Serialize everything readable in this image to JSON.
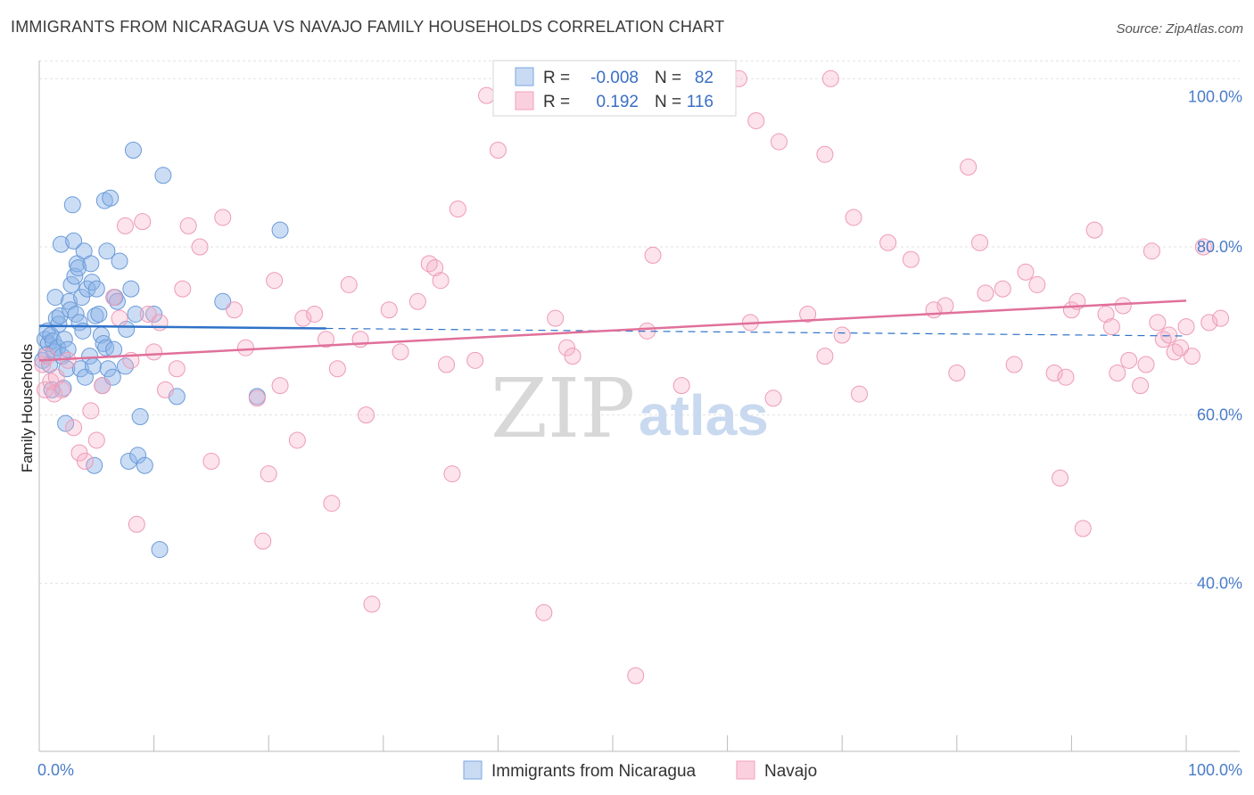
{
  "header": {
    "title": "IMMIGRANTS FROM NICARAGUA VS NAVAJO FAMILY HOUSEHOLDS CORRELATION CHART",
    "source": "Source: ZipAtlas.com"
  },
  "watermark": {
    "part1": "ZIP",
    "part2": "atlas"
  },
  "legend": {
    "rows": [
      {
        "r_label": "R =",
        "r_value": "-0.008",
        "n_label": "N =",
        "n_value": "82"
      },
      {
        "r_label": "R =",
        "r_value": "0.192",
        "n_label": "N =",
        "n_value": "116"
      }
    ]
  },
  "chart_data": {
    "type": "scatter",
    "title": "IMMIGRANTS FROM NICARAGUA VS NAVAJO FAMILY HOUSEHOLDS CORRELATION CHART",
    "xlabel": "",
    "ylabel": "Family Households",
    "xlim": [
      0,
      100
    ],
    "ylim": [
      20,
      103
    ],
    "x_tick_labels": [
      "0.0%",
      "100.0%"
    ],
    "y_ticks": [
      40,
      60,
      80,
      100
    ],
    "y_tick_labels": [
      "40.0%",
      "60.0%",
      "80.0%",
      "100.0%"
    ],
    "colors": {
      "nicaragua": "#7aa7e0",
      "navajo": "#f0a0bb",
      "nicaragua_line": "#2f72c8",
      "navajo_line": "#e0709a"
    },
    "series": [
      {
        "name": "Immigrants from Nicaragua",
        "R": -0.008,
        "N": 82,
        "trend": {
          "x": [
            0,
            25
          ],
          "y": [
            70.6,
            70.3
          ],
          "dashed_to": [
            100,
            69.4
          ]
        },
        "points": [
          [
            0.3,
            66.5
          ],
          [
            0.5,
            69.0
          ],
          [
            0.6,
            67.2
          ],
          [
            0.7,
            70.0
          ],
          [
            0.8,
            68.5
          ],
          [
            0.9,
            66.0
          ],
          [
            1.0,
            69.5
          ],
          [
            1.1,
            63.0
          ],
          [
            1.2,
            68.8
          ],
          [
            1.3,
            67.5
          ],
          [
            1.4,
            74.0
          ],
          [
            1.5,
            71.5
          ],
          [
            1.6,
            68.0
          ],
          [
            1.7,
            70.8
          ],
          [
            1.8,
            71.8
          ],
          [
            1.9,
            80.3
          ],
          [
            2.0,
            67.0
          ],
          [
            2.1,
            63.2
          ],
          [
            2.2,
            69.0
          ],
          [
            2.3,
            59.0
          ],
          [
            2.4,
            65.5
          ],
          [
            2.5,
            67.8
          ],
          [
            2.6,
            73.5
          ],
          [
            2.7,
            72.5
          ],
          [
            2.8,
            75.5
          ],
          [
            2.9,
            85.0
          ],
          [
            3.0,
            80.7
          ],
          [
            3.1,
            76.5
          ],
          [
            3.2,
            72.0
          ],
          [
            3.3,
            78.0
          ],
          [
            3.4,
            77.5
          ],
          [
            3.5,
            71.0
          ],
          [
            3.6,
            65.5
          ],
          [
            3.7,
            74.0
          ],
          [
            3.8,
            70.0
          ],
          [
            3.9,
            79.5
          ],
          [
            4.0,
            64.5
          ],
          [
            4.2,
            75.0
          ],
          [
            4.4,
            67.0
          ],
          [
            4.5,
            78.0
          ],
          [
            4.6,
            75.8
          ],
          [
            4.7,
            65.8
          ],
          [
            4.8,
            54.0
          ],
          [
            4.9,
            71.8
          ],
          [
            5.0,
            75.0
          ],
          [
            5.2,
            72.0
          ],
          [
            5.4,
            69.5
          ],
          [
            5.5,
            63.5
          ],
          [
            5.6,
            68.5
          ],
          [
            5.7,
            85.5
          ],
          [
            5.8,
            68.0
          ],
          [
            5.9,
            79.5
          ],
          [
            6.0,
            65.5
          ],
          [
            6.2,
            85.8
          ],
          [
            6.4,
            64.5
          ],
          [
            6.5,
            67.8
          ],
          [
            6.6,
            74.0
          ],
          [
            6.8,
            73.5
          ],
          [
            7.0,
            78.3
          ],
          [
            7.5,
            65.8
          ],
          [
            7.6,
            70.2
          ],
          [
            7.8,
            54.5
          ],
          [
            8.0,
            75.0
          ],
          [
            8.2,
            91.5
          ],
          [
            8.4,
            72.0
          ],
          [
            8.6,
            55.2
          ],
          [
            8.8,
            59.8
          ],
          [
            9.2,
            54.0
          ],
          [
            10.0,
            72.0
          ],
          [
            10.5,
            44.0
          ],
          [
            10.8,
            88.5
          ],
          [
            12.0,
            62.2
          ],
          [
            16.0,
            73.5
          ],
          [
            19.0,
            62.2
          ],
          [
            21.0,
            82.0
          ]
        ]
      },
      {
        "name": "Navajo",
        "R": 0.192,
        "N": 116,
        "trend": {
          "x": [
            0,
            100
          ],
          "y": [
            66.5,
            73.6
          ]
        },
        "points": [
          [
            0.3,
            66.0
          ],
          [
            0.5,
            63.0
          ],
          [
            0.7,
            67.0
          ],
          [
            1.0,
            64.0
          ],
          [
            1.3,
            62.5
          ],
          [
            1.5,
            64.5
          ],
          [
            2.0,
            63.0
          ],
          [
            2.5,
            66.5
          ],
          [
            3.0,
            58.5
          ],
          [
            3.5,
            55.5
          ],
          [
            4.0,
            54.5
          ],
          [
            4.5,
            60.5
          ],
          [
            5.0,
            57.0
          ],
          [
            5.5,
            63.5
          ],
          [
            6.5,
            74.0
          ],
          [
            7.0,
            71.5
          ],
          [
            7.5,
            82.5
          ],
          [
            8.0,
            66.5
          ],
          [
            8.5,
            47.0
          ],
          [
            9.0,
            83.0
          ],
          [
            9.5,
            72.0
          ],
          [
            10.0,
            67.5
          ],
          [
            10.5,
            71.0
          ],
          [
            11.0,
            63.0
          ],
          [
            12.0,
            65.5
          ],
          [
            12.5,
            75.0
          ],
          [
            13.0,
            82.5
          ],
          [
            14.0,
            80.0
          ],
          [
            15.0,
            54.5
          ],
          [
            16.0,
            83.5
          ],
          [
            17.0,
            72.5
          ],
          [
            18.0,
            68.0
          ],
          [
            19.0,
            62.0
          ],
          [
            19.5,
            45.0
          ],
          [
            20.0,
            53.0
          ],
          [
            20.5,
            76.0
          ],
          [
            21.0,
            63.5
          ],
          [
            22.5,
            57.0
          ],
          [
            23.0,
            71.5
          ],
          [
            24.0,
            72.0
          ],
          [
            25.0,
            69.0
          ],
          [
            25.5,
            49.5
          ],
          [
            26.0,
            65.5
          ],
          [
            27.0,
            75.5
          ],
          [
            28.0,
            69.0
          ],
          [
            28.5,
            60.0
          ],
          [
            29.0,
            37.5
          ],
          [
            30.5,
            72.5
          ],
          [
            31.5,
            67.5
          ],
          [
            33.0,
            73.5
          ],
          [
            34.0,
            78.0
          ],
          [
            34.5,
            77.5
          ],
          [
            35.0,
            76.0
          ],
          [
            35.5,
            66.0
          ],
          [
            36.0,
            53.0
          ],
          [
            36.5,
            84.5
          ],
          [
            38.0,
            66.5
          ],
          [
            39.0,
            98.0
          ],
          [
            40.0,
            91.5
          ],
          [
            41.0,
            100.0
          ],
          [
            44.0,
            36.5
          ],
          [
            45.0,
            71.5
          ],
          [
            46.0,
            68.0
          ],
          [
            46.5,
            67.0
          ],
          [
            48.0,
            100.0
          ],
          [
            52.0,
            29.0
          ],
          [
            53.0,
            70.0
          ],
          [
            53.5,
            79.0
          ],
          [
            56.0,
            63.5
          ],
          [
            61.0,
            100.0
          ],
          [
            62.0,
            71.0
          ],
          [
            62.5,
            95.0
          ],
          [
            64.0,
            62.0
          ],
          [
            64.5,
            92.5
          ],
          [
            67.0,
            72.0
          ],
          [
            68.5,
            91.0
          ],
          [
            68.5,
            67.0
          ],
          [
            69.0,
            100.0
          ],
          [
            70.0,
            69.5
          ],
          [
            71.0,
            83.5
          ],
          [
            71.5,
            62.5
          ],
          [
            74.0,
            80.5
          ],
          [
            76.0,
            78.5
          ],
          [
            78.0,
            72.5
          ],
          [
            79.0,
            73.0
          ],
          [
            80.0,
            65.0
          ],
          [
            81.0,
            89.5
          ],
          [
            82.0,
            80.5
          ],
          [
            82.5,
            74.5
          ],
          [
            84.0,
            75.0
          ],
          [
            85.0,
            66.0
          ],
          [
            86.0,
            77.0
          ],
          [
            87.0,
            75.5
          ],
          [
            88.5,
            65.0
          ],
          [
            89.0,
            52.5
          ],
          [
            89.5,
            64.5
          ],
          [
            90.0,
            72.5
          ],
          [
            90.5,
            73.5
          ],
          [
            91.0,
            46.5
          ],
          [
            92.0,
            82.0
          ],
          [
            93.0,
            72.0
          ],
          [
            93.5,
            70.5
          ],
          [
            94.0,
            65.0
          ],
          [
            94.5,
            73.0
          ],
          [
            95.0,
            66.5
          ],
          [
            96.0,
            63.5
          ],
          [
            96.5,
            66.0
          ],
          [
            97.0,
            79.5
          ],
          [
            97.5,
            71.0
          ],
          [
            98.0,
            69.0
          ],
          [
            98.5,
            69.5
          ],
          [
            99.0,
            67.5
          ],
          [
            99.5,
            68.0
          ],
          [
            100.0,
            70.5
          ],
          [
            100.5,
            67.0
          ],
          [
            101.5,
            80.0
          ],
          [
            102.0,
            71.0
          ],
          [
            103.0,
            71.5
          ]
        ]
      }
    ],
    "legend_position": "top-center",
    "bottom_legend": [
      "Immigrants from Nicaragua",
      "Navajo"
    ]
  }
}
